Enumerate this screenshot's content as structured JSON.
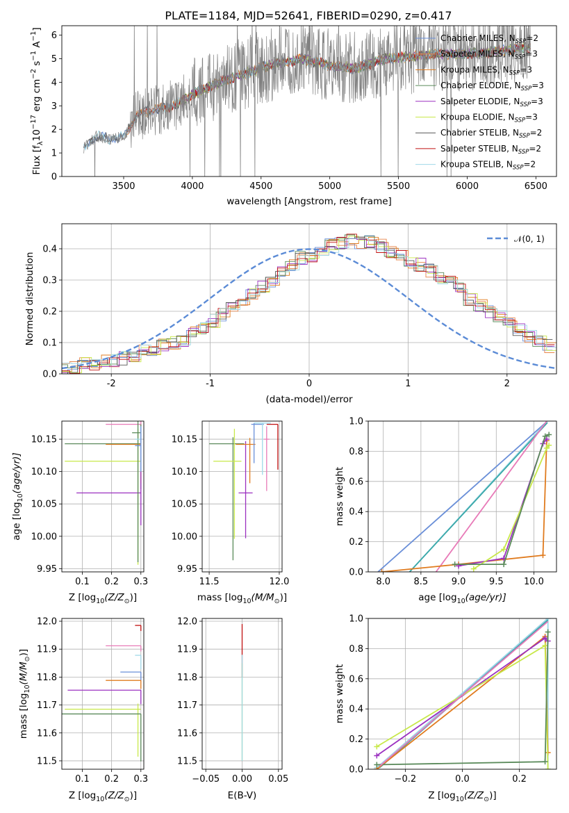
{
  "title": "PLATE=1184, MJD=52641, FIBERID=0290, z=0.417",
  "colors": {
    "chabrier_miles": "#6a8fd8",
    "salpeter_miles": "#e8844a",
    "kroupa_miles": "#e07b1e",
    "chabrier_elodie": "#5a8a5a",
    "salpeter_elodie": "#9b30c0",
    "kroupa_elodie": "#c8e84a",
    "chabrier_stelib": "#555555",
    "salpeter_stelib": "#c01010",
    "kroupa_stelib": "#9fd8e8",
    "pink": "#e87ab8",
    "teal": "#3aa8a8",
    "data": "#808080",
    "normal": "#5b8bd6",
    "grid": "#b0b0b0"
  },
  "chart_data": [
    {
      "id": "spectrum",
      "type": "line",
      "title": "PLATE=1184, MJD=52641, FIBERID=0290, z=0.417",
      "xlabel": "wavelength [Angstrom, rest frame]",
      "ylabel_parts": [
        "Flux [f",
        "λ",
        "10",
        "−17",
        " erg cm",
        "−2",
        " s",
        "−1",
        " A",
        "−1",
        "]"
      ],
      "xlim": [
        3050,
        6650
      ],
      "ylim": [
        0,
        6.4
      ],
      "xticks": [
        3500,
        4000,
        4500,
        5000,
        5500,
        6000,
        6500
      ],
      "yticks": [
        0,
        1,
        2,
        3,
        4,
        5,
        6
      ],
      "grid": false,
      "legend_position": "top-right",
      "legend": [
        {
          "label": "Chabrier MILES, N",
          "sub": "SSP",
          "suffix": "=2"
        },
        {
          "label": "Salpeter MILES, N",
          "sub": "SSP",
          "suffix": "=3"
        },
        {
          "label": "Kroupa MILES, N",
          "sub": "SSP",
          "suffix": "=3"
        },
        {
          "label": "Chabrier ELODIE, N",
          "sub": "SSP",
          "suffix": "=3"
        },
        {
          "label": "Salpeter ELODIE, N",
          "sub": "SSP",
          "suffix": "=3"
        },
        {
          "label": "Kroupa ELODIE, N",
          "sub": "SSP",
          "suffix": "=3"
        },
        {
          "label": "Chabrier STELIB, N",
          "sub": "SSP",
          "suffix": "=2"
        },
        {
          "label": "Salpeter STELIB, N",
          "sub": "SSP",
          "suffix": "=2"
        },
        {
          "label": "Kroupa STELIB, N",
          "sub": "SSP",
          "suffix": "=2"
        }
      ],
      "data_x_range": [
        3210,
        6460
      ],
      "continuum": [
        [
          3210,
          1.2
        ],
        [
          3300,
          1.7
        ],
        [
          3400,
          1.6
        ],
        [
          3500,
          1.7
        ],
        [
          3600,
          2.6
        ],
        [
          3700,
          2.8
        ],
        [
          3800,
          2.9
        ],
        [
          3900,
          3.1
        ],
        [
          4000,
          3.5
        ],
        [
          4200,
          4.0
        ],
        [
          4400,
          4.4
        ],
        [
          4600,
          4.8
        ],
        [
          4800,
          5.0
        ],
        [
          5000,
          4.7
        ],
        [
          5200,
          4.6
        ],
        [
          5400,
          5.0
        ],
        [
          5600,
          5.1
        ],
        [
          5800,
          5.2
        ],
        [
          6000,
          5.2
        ],
        [
          6200,
          5.3
        ],
        [
          6460,
          5.5
        ]
      ]
    },
    {
      "id": "residuals",
      "type": "histogram",
      "xlabel": "(data-model)/error",
      "ylabel": "Normed distribution",
      "xlim": [
        -2.5,
        2.5
      ],
      "ylim": [
        0,
        0.48
      ],
      "xticks": [
        -2,
        -1,
        0,
        1,
        2
      ],
      "yticks": [
        0.0,
        0.1,
        0.2,
        0.3,
        0.4
      ],
      "grid": true,
      "legend_position": "top-right",
      "legend": [
        "𝒩(0, 1)"
      ],
      "bin_width": 0.1,
      "base_hist": [
        0.02,
        0.02,
        0.03,
        0.03,
        0.04,
        0.04,
        0.05,
        0.06,
        0.07,
        0.08,
        0.09,
        0.1,
        0.11,
        0.13,
        0.15,
        0.17,
        0.19,
        0.21,
        0.23,
        0.26,
        0.28,
        0.3,
        0.33,
        0.35,
        0.37,
        0.38,
        0.4,
        0.41,
        0.42,
        0.43,
        0.42,
        0.42,
        0.41,
        0.39,
        0.38,
        0.36,
        0.35,
        0.33,
        0.31,
        0.29,
        0.27,
        0.24,
        0.22,
        0.2,
        0.18,
        0.16,
        0.14,
        0.12,
        0.1,
        0.09
      ]
    },
    {
      "id": "age_vs_Z",
      "type": "errorbar",
      "xlabel": "Z [log",
      "xlabel_tail": "(Z/Z",
      "ylabel": "age  [log",
      "ylabel_tail": "(age/yr)]",
      "xlim": [
        0.03,
        0.31
      ],
      "ylim": [
        9.945,
        10.178
      ],
      "xticks": [
        0.1,
        0.2,
        0.3
      ],
      "xtick_labels": [
        "0.1",
        "0.2",
        "0.3"
      ],
      "yticks": [
        9.95,
        10.0,
        10.05,
        10.1,
        10.15
      ],
      "ytick_labels": [
        "9.95",
        "10.00",
        "10.05",
        "10.10",
        "10.15"
      ],
      "grid": true,
      "points": [
        {
          "x": 0.3,
          "y": 10.173,
          "xerr": [
            0.12,
            0
          ],
          "yerr": [
            0.07,
            0.005
          ],
          "color": "#e87ab8"
        },
        {
          "x": 0.3,
          "y": 10.143,
          "xerr": [
            0.26,
            0
          ],
          "yerr": [
            0.07,
            0.03
          ],
          "color": "#5a8a5a"
        },
        {
          "x": 0.3,
          "y": 10.142,
          "xerr": [
            0.12,
            0
          ],
          "yerr": [
            0.06,
            0.01
          ],
          "color": "#e07b1e"
        },
        {
          "x": 0.29,
          "y": 10.116,
          "xerr": [
            0.25,
            0.01
          ],
          "yerr": [
            0.16,
            0.05
          ],
          "color": "#c8e84a"
        },
        {
          "x": 0.3,
          "y": 10.067,
          "xerr": [
            0.22,
            0
          ],
          "yerr": [
            0.05,
            0.08
          ],
          "color": "#9b30c0"
        },
        {
          "x": 0.29,
          "y": 10.16,
          "xerr": [
            0.02,
            0.01
          ],
          "yerr": [
            0.2,
            0.02
          ],
          "color": "#5a8a5a"
        },
        {
          "x": 0.3,
          "y": 10.15,
          "xerr": [
            0.02,
            0
          ],
          "yerr": [
            0.05,
            0.02
          ],
          "color": "#9fd8e8"
        },
        {
          "x": 0.3,
          "y": 10.14,
          "xerr": [
            0.02,
            0
          ],
          "yerr": [
            0.04,
            0.03
          ],
          "color": "#6a8fd8"
        }
      ]
    },
    {
      "id": "age_vs_mass",
      "type": "errorbar",
      "xlabel": "mass [log",
      "xlabel_tail": "(M/M",
      "ylabel": "",
      "xlim": [
        11.45,
        12.02
      ],
      "ylim": [
        9.945,
        10.178
      ],
      "xticks": [
        11.5,
        12.0
      ],
      "xtick_labels": [
        "11.5",
        "12.0"
      ],
      "yticks": [
        9.95,
        10.0,
        10.05,
        10.1,
        10.15
      ],
      "ytick_labels": [
        "9.95",
        "10.00",
        "10.05",
        "10.10",
        "10.15"
      ],
      "grid": true,
      "points": [
        {
          "x": 11.67,
          "y": 10.143,
          "xerr": [
            0.17,
            0.08
          ],
          "yerr": [
            0.18,
            0.01
          ],
          "color": "#5a8a5a"
        },
        {
          "x": 11.68,
          "y": 10.116,
          "xerr": [
            0.15,
            0.05
          ],
          "yerr": [
            0.12,
            0.05
          ],
          "color": "#c8e84a"
        },
        {
          "x": 11.76,
          "y": 10.067,
          "xerr": [
            0.05,
            0.05
          ],
          "yerr": [
            0.07,
            0.08
          ],
          "color": "#9b30c0"
        },
        {
          "x": 11.79,
          "y": 10.142,
          "xerr": [
            0.1,
            0.04
          ],
          "yerr": [
            0.06,
            0.01
          ],
          "color": "#e07b1e"
        },
        {
          "x": 11.82,
          "y": 10.173,
          "xerr": [
            0.02,
            0.07
          ],
          "yerr": [
            0.06,
            0.002
          ],
          "color": "#6a8fd8"
        },
        {
          "x": 11.88,
          "y": 10.175,
          "xerr": [
            0.06,
            0.06
          ],
          "yerr": [
            0.08,
            0.0
          ],
          "color": "#9fd8e8"
        },
        {
          "x": 11.99,
          "y": 10.173,
          "xerr": [
            0.08,
            0.0
          ],
          "yerr": [
            0.07,
            0.0
          ],
          "color": "#c01010"
        },
        {
          "x": 11.91,
          "y": 10.15,
          "xerr": [
            0.02,
            0.02
          ],
          "yerr": [
            0.08,
            0.02
          ],
          "color": "#e87ab8"
        }
      ]
    },
    {
      "id": "weight_vs_age",
      "type": "line",
      "xlabel": "age  [log",
      "xlabel_tail": "(age/yr)]",
      "ylabel": "mass weight",
      "xlim": [
        7.8,
        10.3
      ],
      "ylim": [
        0,
        1.0
      ],
      "xticks": [
        8.0,
        8.5,
        9.0,
        9.5,
        10.0
      ],
      "xtick_labels": [
        "8.0",
        "8.5",
        "9.0",
        "9.5",
        "10.0"
      ],
      "yticks": [
        0.0,
        0.2,
        0.4,
        0.6,
        0.8,
        1.0
      ],
      "ytick_labels": [
        "0.0",
        "0.2",
        "0.4",
        "0.6",
        "0.8",
        "1.0"
      ],
      "grid": true,
      "series": [
        {
          "color": "#6a8fd8",
          "points": [
            [
              7.93,
              0.0
            ],
            [
              10.18,
              1.0
            ]
          ]
        },
        {
          "color": "#9fd8e8",
          "points": [
            [
              8.35,
              0.0
            ],
            [
              10.18,
              1.0
            ]
          ]
        },
        {
          "color": "#3aa8a8",
          "points": [
            [
              8.35,
              0.0
            ],
            [
              10.18,
              0.99
            ]
          ]
        },
        {
          "color": "#e87ab8",
          "points": [
            [
              8.7,
              0.0
            ],
            [
              10.17,
              1.0
            ]
          ]
        },
        {
          "color": "#e07b1e",
          "points": [
            [
              7.98,
              0.0
            ],
            [
              9.0,
              0.05
            ],
            [
              10.12,
              0.11
            ],
            [
              10.17,
              0.87
            ]
          ],
          "markers": true
        },
        {
          "color": "#9b30c0",
          "points": [
            [
              9.0,
              0.04
            ],
            [
              9.6,
              0.09
            ],
            [
              10.12,
              0.85
            ],
            [
              10.17,
              0.88
            ]
          ],
          "markers": true
        },
        {
          "color": "#c8e84a",
          "points": [
            [
              9.2,
              0.02
            ],
            [
              9.6,
              0.15
            ],
            [
              10.17,
              0.82
            ],
            [
              10.2,
              0.84
            ]
          ],
          "markers": true
        },
        {
          "color": "#5a8a5a",
          "points": [
            [
              8.95,
              0.05
            ],
            [
              9.6,
              0.05
            ],
            [
              10.15,
              0.9
            ],
            [
              10.2,
              0.91
            ]
          ],
          "markers": true
        }
      ]
    },
    {
      "id": "mass_vs_Z",
      "type": "errorbar",
      "xlabel": "Z [log",
      "xlabel_tail": "(Z/Z",
      "ylabel": "mass [log",
      "ylabel_tail": "(M/M",
      "xlim": [
        0.03,
        0.31
      ],
      "ylim": [
        11.47,
        12.01
      ],
      "xticks": [
        0.1,
        0.2,
        0.3
      ],
      "xtick_labels": [
        "0.1",
        "0.2",
        "0.3"
      ],
      "yticks": [
        11.5,
        11.6,
        11.7,
        11.8,
        11.9,
        12.0
      ],
      "ytick_labels": [
        "11.5",
        "11.6",
        "11.7",
        "11.8",
        "11.9",
        "12.0"
      ],
      "grid": true,
      "points": [
        {
          "x": 0.3,
          "y": 11.985,
          "xerr": [
            0.02,
            0
          ],
          "yerr": [
            0.02,
            0.0
          ],
          "color": "#c01010"
        },
        {
          "x": 0.3,
          "y": 11.912,
          "xerr": [
            0.12,
            0
          ],
          "yerr": [
            0.02,
            0.0
          ],
          "color": "#e87ab8"
        },
        {
          "x": 0.3,
          "y": 11.878,
          "xerr": [
            0.02,
            0
          ],
          "yerr": [
            0.05,
            0.0
          ],
          "color": "#9fd8e8"
        },
        {
          "x": 0.3,
          "y": 11.818,
          "xerr": [
            0.07,
            0
          ],
          "yerr": [
            0.03,
            0.0
          ],
          "color": "#6a8fd8"
        },
        {
          "x": 0.3,
          "y": 11.788,
          "xerr": [
            0.12,
            0
          ],
          "yerr": [
            0.03,
            0.0
          ],
          "color": "#e07b1e"
        },
        {
          "x": 0.3,
          "y": 11.753,
          "xerr": [
            0.25,
            0
          ],
          "yerr": [
            0.05,
            0.0
          ],
          "color": "#9b30c0"
        },
        {
          "x": 0.29,
          "y": 11.685,
          "xerr": [
            0.25,
            0.01
          ],
          "yerr": [
            0.17,
            0.02
          ],
          "color": "#c8e84a"
        },
        {
          "x": 0.3,
          "y": 11.668,
          "xerr": [
            0.27,
            0
          ],
          "yerr": [
            0.17,
            0.0
          ],
          "color": "#5a8a5a"
        }
      ]
    },
    {
      "id": "mass_vs_ebv",
      "type": "errorbar",
      "xlabel": "E(B-V)",
      "ylabel": "",
      "xlim": [
        -0.055,
        0.055
      ],
      "ylim": [
        11.47,
        12.01
      ],
      "xticks": [
        -0.05,
        0.0,
        0.05
      ],
      "xtick_labels": [
        "−0.05",
        "0.00",
        "0.05"
      ],
      "yticks": [
        11.5,
        11.6,
        11.7,
        11.8,
        11.9,
        12.0
      ],
      "ytick_labels": [
        "11.5",
        "11.6",
        "11.7",
        "11.8",
        "11.9",
        "12.0"
      ],
      "grid": true,
      "points": [
        {
          "x": 0.0,
          "y": 11.9,
          "xerr": [
            0,
            0
          ],
          "yerr": [
            0.1,
            0.09
          ],
          "color": "#c01010"
        },
        {
          "x": 0.0,
          "y": 11.75,
          "xerr": [
            0,
            0
          ],
          "yerr": [
            0.25,
            0.1
          ],
          "color": "#c8e84a"
        },
        {
          "x": 0.0,
          "y": 11.82,
          "xerr": [
            0,
            0
          ],
          "yerr": [
            0.32,
            0.06
          ],
          "color": "#9fd8e8"
        }
      ]
    },
    {
      "id": "weight_vs_Z",
      "type": "line",
      "xlabel": "Z [log",
      "xlabel_tail": "(Z/Z",
      "ylabel": "mass weight",
      "xlim": [
        -0.33,
        0.33
      ],
      "ylim": [
        0,
        1.0
      ],
      "xticks": [
        -0.2,
        0.0,
        0.2
      ],
      "xtick_labels": [
        "−0.2",
        "0.0",
        "0.2"
      ],
      "yticks": [
        0.0,
        0.2,
        0.4,
        0.6,
        0.8,
        1.0
      ],
      "ytick_labels": [
        "0.0",
        "0.2",
        "0.4",
        "0.6",
        "0.8",
        "1.0"
      ],
      "grid": true,
      "series": [
        {
          "color": "#6a8fd8",
          "points": [
            [
              -0.3,
              0.0
            ],
            [
              0.3,
              1.0
            ]
          ]
        },
        {
          "color": "#9fd8e8",
          "points": [
            [
              -0.3,
              0.01
            ],
            [
              0.3,
              1.0
            ],
            [
              0.3,
              0.0
            ]
          ],
          "markers": true
        },
        {
          "color": "#3aa8a8",
          "points": [
            [
              -0.29,
              0.01
            ],
            [
              0.3,
              0.99
            ]
          ]
        },
        {
          "color": "#e07b1e",
          "points": [
            [
              -0.3,
              0.0
            ],
            [
              0.29,
              0.88
            ],
            [
              0.3,
              0.11
            ]
          ],
          "markers": true
        },
        {
          "color": "#9b30c0",
          "points": [
            [
              -0.3,
              0.09
            ],
            [
              0.29,
              0.87
            ],
            [
              0.3,
              0.85
            ]
          ],
          "markers": true
        },
        {
          "color": "#c8e84a",
          "points": [
            [
              -0.3,
              0.15
            ],
            [
              0.29,
              0.82
            ],
            [
              0.3,
              0.0
            ]
          ],
          "markers": true
        },
        {
          "color": "#5a8a5a",
          "points": [
            [
              -0.3,
              0.03
            ],
            [
              0.29,
              0.05
            ],
            [
              0.3,
              0.91
            ]
          ],
          "markers": true
        },
        {
          "color": "#e87ab8",
          "points": [
            [
              -0.29,
              0.02
            ],
            [
              0.3,
              0.98
            ]
          ]
        }
      ]
    }
  ]
}
